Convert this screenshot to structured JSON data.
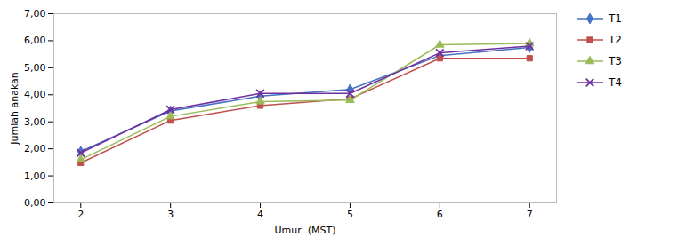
{
  "chart_data": {
    "type": "line",
    "x": [
      2,
      3,
      4,
      5,
      6,
      7
    ],
    "series": [
      {
        "name": "T1",
        "color": "#4472C4",
        "marker": "diamond",
        "values": [
          1.9,
          3.4,
          3.95,
          4.2,
          5.45,
          5.75
        ]
      },
      {
        "name": "T2",
        "color": "#C0504D",
        "marker": "square",
        "values": [
          1.48,
          3.05,
          3.6,
          3.85,
          5.35,
          5.35
        ]
      },
      {
        "name": "T3",
        "color": "#9BBB59",
        "marker": "triangle",
        "values": [
          1.6,
          3.2,
          3.75,
          3.8,
          5.85,
          5.9
        ]
      },
      {
        "name": "T4",
        "color": "#7030A0",
        "marker": "times",
        "values": [
          1.85,
          3.45,
          4.05,
          4.05,
          5.55,
          5.8
        ]
      }
    ],
    "xlabel": "Umur  (MST)",
    "ylabel": "Jumlah anakan",
    "xlim": [
      1.7,
      7.3
    ],
    "ylim": [
      0.0,
      7.0
    ],
    "xticks": [
      2,
      3,
      4,
      5,
      6,
      7
    ],
    "yticks": [
      {
        "value": 0.0,
        "label": "0,00"
      },
      {
        "value": 1.0,
        "label": "1,00"
      },
      {
        "value": 2.0,
        "label": "2,00"
      },
      {
        "value": 3.0,
        "label": "3,00"
      },
      {
        "value": 4.0,
        "label": "4,00"
      },
      {
        "value": 5.0,
        "label": "5,00"
      },
      {
        "value": 6.0,
        "label": "6,00"
      },
      {
        "value": 7.0,
        "label": "7,00"
      }
    ],
    "legend": "right"
  }
}
